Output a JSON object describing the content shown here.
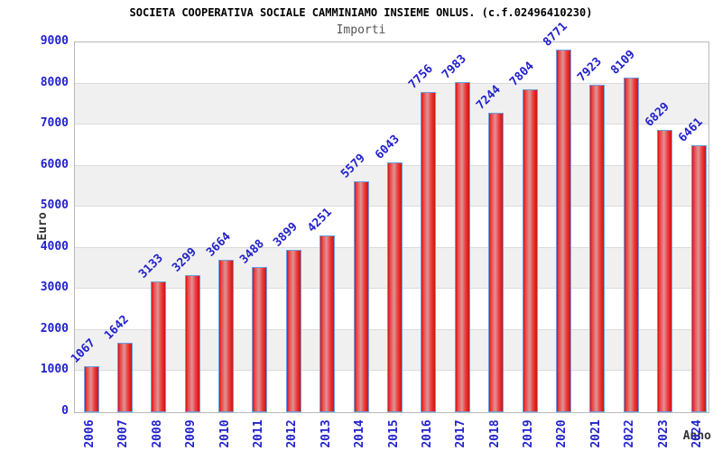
{
  "title": "SOCIETA COOPERATIVA SOCIALE CAMMINIAMO INSIEME ONLUS. (c.f.02496410230)",
  "subtitle": "Importi",
  "chart_data": {
    "type": "bar",
    "title": "SOCIETA COOPERATIVA SOCIALE CAMMINIAMO INSIEME ONLUS. (c.f.02496410230)",
    "subtitle": "Importi",
    "categories": [
      "2006",
      "2007",
      "2008",
      "2009",
      "2010",
      "2011",
      "2012",
      "2013",
      "2014",
      "2015",
      "2016",
      "2017",
      "2018",
      "2019",
      "2020",
      "2021",
      "2022",
      "2023",
      "2024"
    ],
    "values": [
      1067,
      1642,
      3133,
      3299,
      3664,
      3488,
      3899,
      4251,
      5579,
      6043,
      7756,
      7983,
      7244,
      7804,
      8771,
      7923,
      8109,
      6829,
      6461
    ],
    "xlabel": "Anno",
    "ylabel": "Euro",
    "ylim": [
      0,
      9000
    ],
    "ytick_step": 1000,
    "grid": true,
    "legend": "none",
    "bar_labels_rotation_deg": -45,
    "xtick_rotation_deg": -90
  },
  "colors": {
    "text_blue": "#2222cc",
    "title_black": "#000000",
    "subtitle_gray": "#555555",
    "axis_label_gray": "#333333",
    "band_gray": "#f0f0f0",
    "gridline": "#dbdbdb",
    "frame": "#b9b9b9",
    "bar_border_blue": "#6b9fe4",
    "bar_red_dark": "#cc1414",
    "bar_red": "#ee3b3b",
    "bar_red_light": "#dc9494"
  }
}
